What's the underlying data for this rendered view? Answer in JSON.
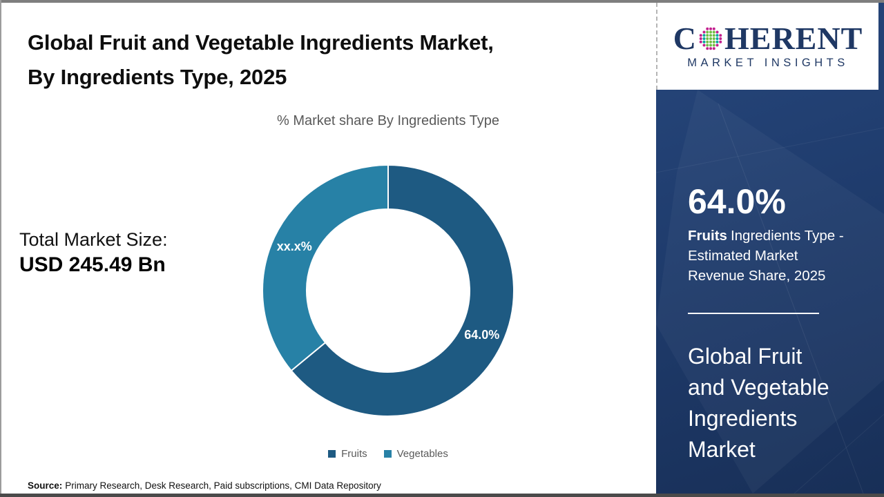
{
  "page": {
    "title": {
      "line1": "Global Fruit and Vegetable Ingredients Market,",
      "line2": "By Ingredients Type, 2025"
    }
  },
  "chart_data": {
    "type": "pie",
    "donut": true,
    "title": "% Market share By Ingredients Type",
    "categories": [
      "Fruits",
      "Vegetables"
    ],
    "values": [
      64.0,
      36.0
    ],
    "slice_labels": [
      "64.0%",
      "xx.x%"
    ],
    "colors": [
      "#1e5a82",
      "#2781a6"
    ],
    "label_color": "#ffffff",
    "start_angle_deg": 0,
    "direction": "clockwise",
    "inner_radius_ratio": 0.65,
    "legend_position": "bottom"
  },
  "total_market": {
    "label": "Total Market Size:",
    "value": "USD 245.49 Bn"
  },
  "source": {
    "label": "Source:",
    "text": "Primary Research, Desk Research, Paid subscriptions, CMI Data Repository"
  },
  "branding": {
    "logo_text_start": "C",
    "logo_text_end": "HERENT",
    "logo_full": "COHERENT",
    "tagline": "MARKET INSIGHTS",
    "navy": "#1f3864",
    "globe_dot_colors": {
      "ring": "#c2208e",
      "side": "#00a79d",
      "center": "#72bf44"
    }
  },
  "sidebar": {
    "stat_value": "64.0%",
    "stat_desc_bold": "Fruits",
    "stat_desc_rest": "Ingredients Type - Estimated Market Revenue Share, 2025",
    "market_name": "Global Fruit and Vegetable Ingredients Market",
    "panel_color": "#1e3a66"
  }
}
